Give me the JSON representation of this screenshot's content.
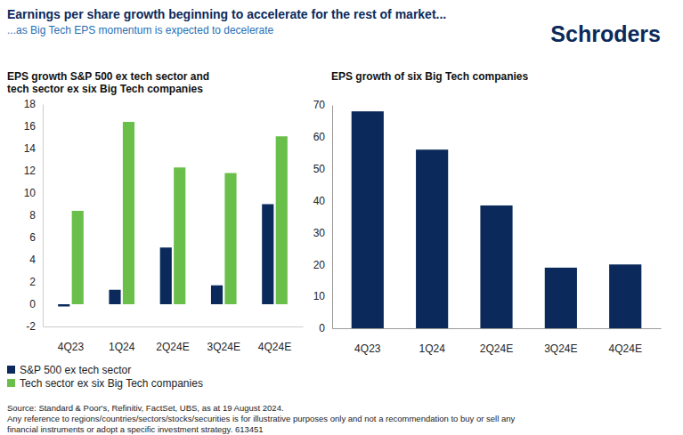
{
  "header": {
    "title": "Earnings per share growth beginning to accelerate for the rest of market...",
    "subtitle": "...as Big Tech EPS momentum is expected to decelerate",
    "brand": "Schroders"
  },
  "chart_data": [
    {
      "type": "bar",
      "title": [
        "EPS growth S&P 500  ex tech sector and",
        "tech sector ex six Big Tech companies"
      ],
      "categories": [
        "4Q23",
        "1Q24",
        "2Q24E",
        "3Q24E",
        "4Q24E"
      ],
      "series": [
        {
          "name": "S&P 500 ex tech sector",
          "color": "#0b2a5b",
          "values": [
            -0.2,
            1.3,
            5.1,
            1.7,
            9.0
          ]
        },
        {
          "name": "Tech sector ex six Big Tech companies",
          "color": "#6abf4b",
          "values": [
            8.4,
            16.4,
            12.3,
            11.8,
            15.1
          ]
        }
      ],
      "ylim": [
        -2,
        18
      ],
      "yticks": [
        -2,
        0,
        2,
        4,
        6,
        8,
        10,
        12,
        14,
        16,
        18
      ],
      "grid": false,
      "legend": "bottom-left"
    },
    {
      "type": "bar",
      "title": [
        "EPS growth of six Big Tech companies"
      ],
      "categories": [
        "4Q23",
        "1Q24",
        "2Q24E",
        "3Q24E",
        "4Q24E"
      ],
      "values": [
        68,
        56,
        38.5,
        19,
        20
      ],
      "color": "#0b2a5b",
      "ylim": [
        0,
        70
      ],
      "yticks": [
        0,
        10,
        20,
        30,
        40,
        50,
        60,
        70
      ],
      "grid": false
    }
  ],
  "footer": [
    "Source: Standard & Poor's, Refinitiv, FactSet, UBS, as at 19 August 2024.",
    "Any reference to regions/countries/sectors/stocks/securities is for illustrative purposes only and not a recommendation to buy or sell any",
    "financial instruments or adopt a specific investment strategy. 613451"
  ]
}
